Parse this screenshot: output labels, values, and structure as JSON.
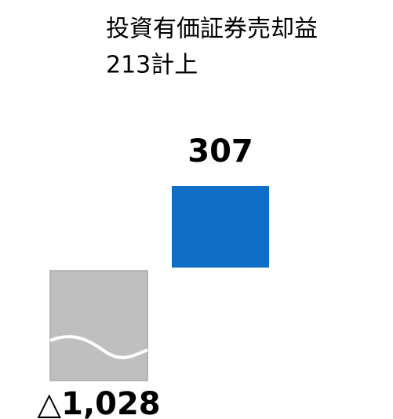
{
  "chart_data": {
    "type": "bar",
    "annotation": [
      "投資有価証券売却益",
      "213計上"
    ],
    "categories": [
      null,
      null
    ],
    "values": [
      -1028,
      307
    ],
    "value_labels": [
      "△1,028",
      "307"
    ],
    "colors": [
      "#bfbfbf",
      "#0f6fc6"
    ]
  }
}
